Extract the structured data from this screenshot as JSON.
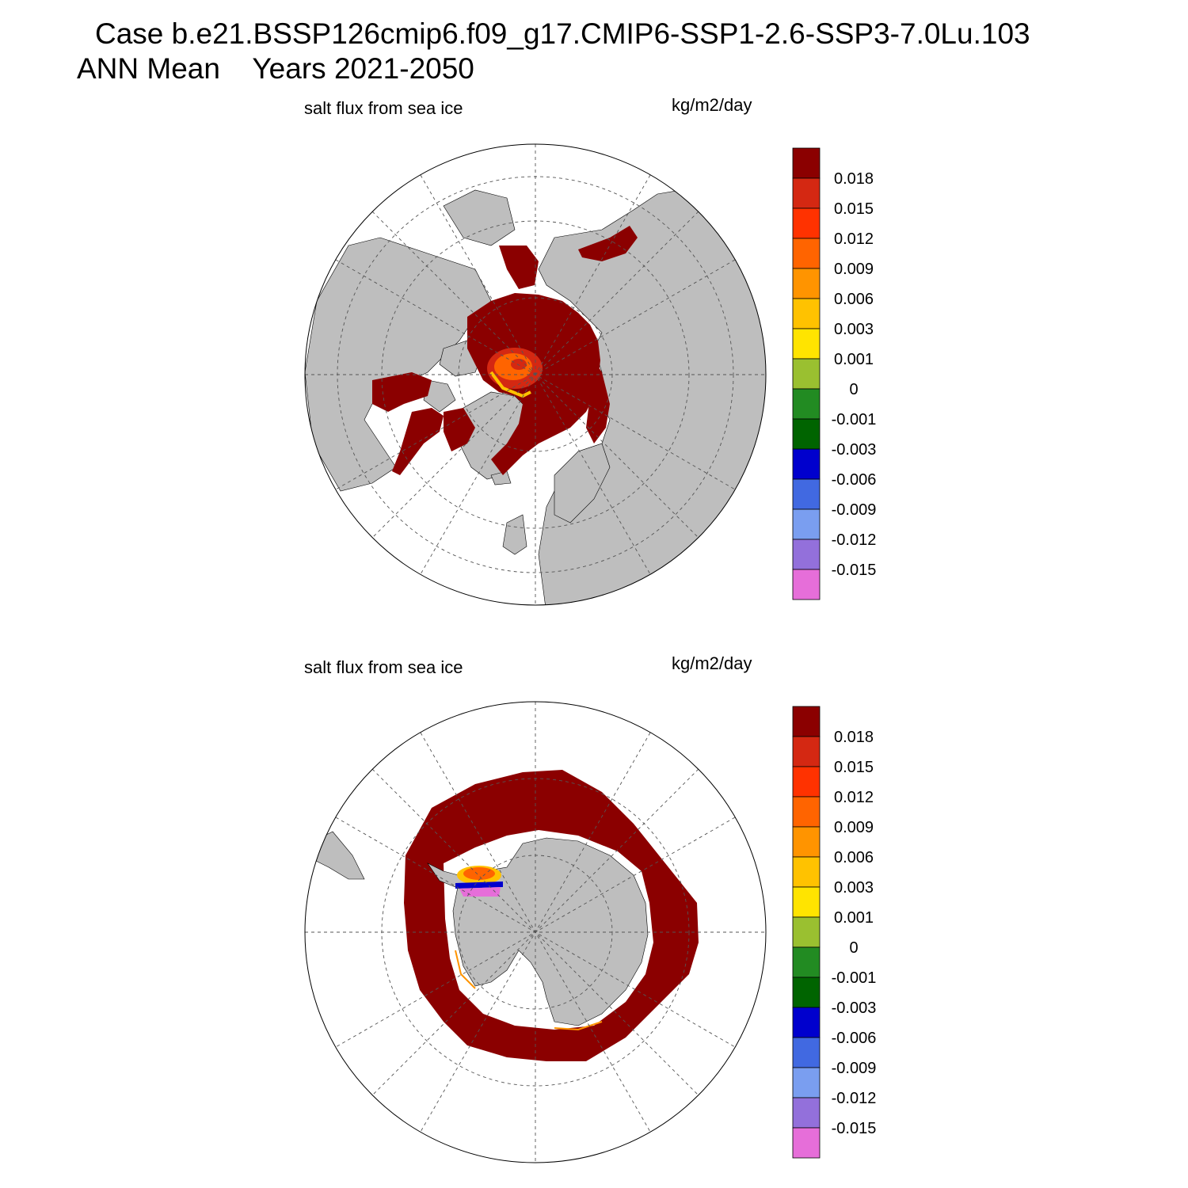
{
  "title": {
    "line1": "Case b.e21.BSSP126cmip6.f09_g17.CMIP6-SSP1-2.6-SSP3-7.0Lu.103",
    "line2": "ANN Mean    Years 2021-2050"
  },
  "colors": {
    "land": "#bebebe",
    "ocean_open": "#ffffff",
    "ice_max": "#8b0000"
  },
  "colorbar": {
    "levels": [
      "0.018",
      "0.015",
      "0.012",
      "0.009",
      "0.006",
      "0.003",
      "0.001",
      "0",
      "-0.001",
      "-0.003",
      "-0.006",
      "-0.009",
      "-0.012",
      "-0.015"
    ],
    "colors": [
      "#8b0000",
      "#d42812",
      "#ff3200",
      "#ff6400",
      "#ff9400",
      "#ffc200",
      "#ffe400",
      "#9ac030",
      "#228b22",
      "#006400",
      "#0000cd",
      "#4169e1",
      "#7a9ef0",
      "#9370db",
      "#e66ed9"
    ]
  },
  "panels": [
    {
      "id": "north",
      "variable": "salt flux from sea ice",
      "units": "kg/m2/day",
      "hemisphere": "Northern (polar stereographic)"
    },
    {
      "id": "south",
      "variable": "salt flux from sea ice",
      "units": "kg/m2/day",
      "hemisphere": "Southern (polar stereographic)"
    }
  ]
}
